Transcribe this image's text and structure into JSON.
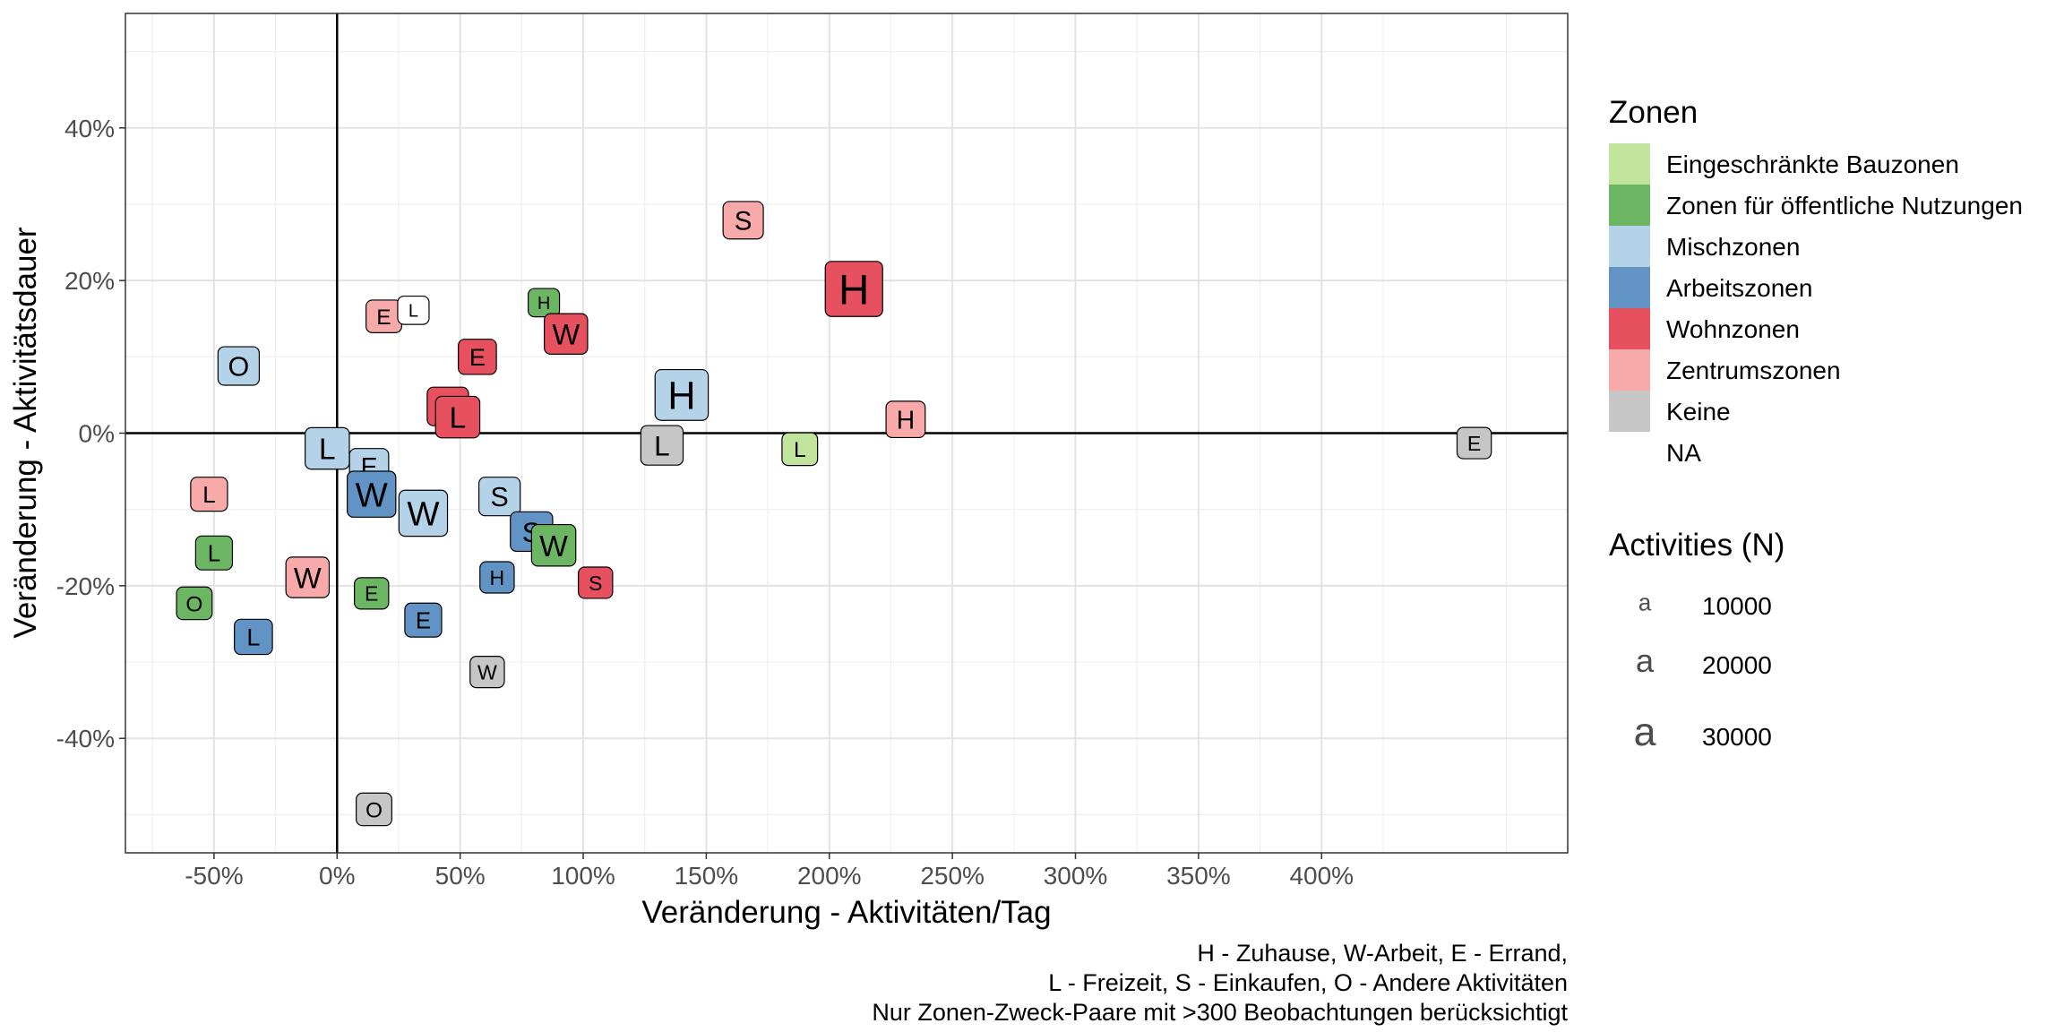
{
  "chart_data": {
    "type": "scatter",
    "title": "",
    "xlabel": "Veränderung - Aktivitäten/Tag",
    "ylabel": "Veränderung - Aktivitätsdauer",
    "xlim": [
      -0.86,
      5.0
    ],
    "ylim": [
      -0.55,
      0.55
    ],
    "x_ticks": [
      -0.5,
      0,
      0.5,
      1.0,
      1.5,
      2.0,
      2.5,
      3.0,
      3.5,
      4.0
    ],
    "x_tick_labels": [
      "-50%",
      "0%",
      "50%",
      "100%",
      "150%",
      "200%",
      "250%",
      "300%",
      "350%",
      "400%"
    ],
    "y_ticks": [
      -0.4,
      -0.2,
      0,
      0.2,
      0.4
    ],
    "y_tick_labels": [
      "-40%",
      "-20%",
      "0%",
      "20%",
      "40%"
    ],
    "grid": true,
    "reference_lines": {
      "x": 0,
      "y": 0
    },
    "legend_position": "right",
    "color_legend": {
      "title": "Zonen",
      "entries": [
        {
          "label": "Eingeschränkte Bauzonen",
          "color": "#c2e59e"
        },
        {
          "label": "Zonen für öffentliche Nutzungen",
          "color": "#6cb663"
        },
        {
          "label": "Mischzonen",
          "color": "#b4d3e8"
        },
        {
          "label": "Arbeitszonen",
          "color": "#6194c4"
        },
        {
          "label": "Wohnzonen",
          "color": "#e6505f"
        },
        {
          "label": "Zentrumszonen",
          "color": "#f8a9a9"
        },
        {
          "label": "Keine",
          "color": "#c6c6c6"
        },
        {
          "label": "NA",
          "color": "#ffffff"
        }
      ]
    },
    "size_legend": {
      "title": "Activities (N)",
      "glyph": "a",
      "entries": [
        {
          "label": "10000",
          "value": 10000
        },
        {
          "label": "20000",
          "value": 20000
        },
        {
          "label": "30000",
          "value": 30000
        }
      ]
    },
    "caption": [
      "H - Zuhause, W-Arbeit, E - Errand,",
      "L - Freizeit, S - Einkaufen, O - Andere Aktivitäten",
      "Nur Zonen-Zweck-Paare mit >300 Beobachtungen berücksichtigt"
    ],
    "points": [
      {
        "label": "O",
        "zone": "Mischzonen",
        "x": -0.4,
        "y": 0.088,
        "n": 14000
      },
      {
        "label": "E",
        "zone": "Zentrumszonen",
        "x": 0.19,
        "y": 0.153,
        "n": 9000
      },
      {
        "label": "L",
        "zone": "NA",
        "x": 0.31,
        "y": 0.161,
        "n": 6000
      },
      {
        "label": "H",
        "zone": "Zonen für öffentliche Nutzungen",
        "x": 0.84,
        "y": 0.171,
        "n": 6000
      },
      {
        "label": "W",
        "zone": "Wohnzonen",
        "x": 0.93,
        "y": 0.13,
        "n": 16000
      },
      {
        "label": "S",
        "zone": "Zentrumszonen",
        "x": 1.65,
        "y": 0.279,
        "n": 13000
      },
      {
        "label": "H",
        "zone": "Wohnzonen",
        "x": 2.1,
        "y": 0.189,
        "n": 34000
      },
      {
        "label": "E",
        "zone": "Wohnzonen",
        "x": 0.57,
        "y": 0.1,
        "n": 11000
      },
      {
        "label": "O",
        "zone": "Wohnzonen",
        "x": 0.45,
        "y": 0.035,
        "n": 14000
      },
      {
        "label": "L",
        "zone": "Wohnzonen",
        "x": 0.49,
        "y": 0.021,
        "n": 17000
      },
      {
        "label": "H",
        "zone": "Mischzonen",
        "x": 1.4,
        "y": 0.05,
        "n": 28000
      },
      {
        "label": "H",
        "zone": "Zentrumszonen",
        "x": 2.31,
        "y": 0.018,
        "n": 12000
      },
      {
        "label": "L",
        "zone": "Keine",
        "x": 1.32,
        "y": -0.016,
        "n": 15000
      },
      {
        "label": "L",
        "zone": "Eingeschränkte Bauzonen",
        "x": 1.88,
        "y": -0.021,
        "n": 9000
      },
      {
        "label": "E",
        "zone": "Keine",
        "x": 4.62,
        "y": -0.013,
        "n": 8000
      },
      {
        "label": "L",
        "zone": "Mischzonen",
        "x": -0.04,
        "y": -0.02,
        "n": 17000
      },
      {
        "label": "E",
        "zone": "Mischzonen",
        "x": 0.13,
        "y": -0.044,
        "n": 12000
      },
      {
        "label": "W",
        "zone": "Arbeitszonen",
        "x": 0.14,
        "y": -0.08,
        "n": 22000
      },
      {
        "label": "W",
        "zone": "Mischzonen",
        "x": 0.35,
        "y": -0.105,
        "n": 22000
      },
      {
        "label": "S",
        "zone": "Mischzonen",
        "x": 0.66,
        "y": -0.083,
        "n": 14000
      },
      {
        "label": "S",
        "zone": "Arbeitszonen",
        "x": 0.79,
        "y": -0.129,
        "n": 15000
      },
      {
        "label": "W",
        "zone": "Zonen für öffentliche Nutzungen",
        "x": 0.88,
        "y": -0.147,
        "n": 17000
      },
      {
        "label": "H",
        "zone": "Arbeitszonen",
        "x": 0.65,
        "y": -0.189,
        "n": 8000
      },
      {
        "label": "S",
        "zone": "Wohnzonen",
        "x": 1.05,
        "y": -0.196,
        "n": 8000
      },
      {
        "label": "L",
        "zone": "Zentrumszonen",
        "x": -0.52,
        "y": -0.08,
        "n": 10000
      },
      {
        "label": "L",
        "zone": "Zonen für öffentliche Nutzungen",
        "x": -0.5,
        "y": -0.157,
        "n": 10000
      },
      {
        "label": "O",
        "zone": "Zonen für öffentliche Nutzungen",
        "x": -0.58,
        "y": -0.223,
        "n": 9000
      },
      {
        "label": "W",
        "zone": "Zentrumszonen",
        "x": -0.12,
        "y": -0.189,
        "n": 16000
      },
      {
        "label": "E",
        "zone": "Zonen für öffentliche Nutzungen",
        "x": 0.14,
        "y": -0.21,
        "n": 8000
      },
      {
        "label": "E",
        "zone": "Arbeitszonen",
        "x": 0.35,
        "y": -0.245,
        "n": 10000
      },
      {
        "label": "L",
        "zone": "Arbeitszonen",
        "x": -0.34,
        "y": -0.267,
        "n": 11000
      },
      {
        "label": "W",
        "zone": "Keine",
        "x": 0.61,
        "y": -0.313,
        "n": 8000
      },
      {
        "label": "O",
        "zone": "Keine",
        "x": 0.15,
        "y": -0.493,
        "n": 9000
      }
    ]
  }
}
